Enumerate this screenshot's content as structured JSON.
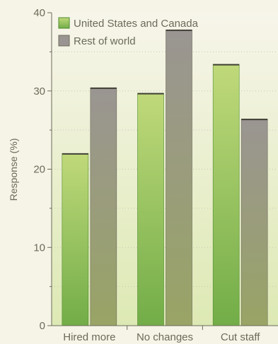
{
  "chart_data": {
    "type": "bar",
    "title": "",
    "xlabel": "",
    "ylabel": "Response (%)",
    "ylim": [
      0,
      40
    ],
    "yticks": [
      0,
      10,
      20,
      30,
      40
    ],
    "grid": true,
    "legend_position": "top-left",
    "categories": [
      "Hired more",
      "No changes",
      "Cut staff"
    ],
    "series": [
      {
        "name": "United States and Canada",
        "values": [
          22,
          29.7,
          33.4
        ],
        "color": "#8cc25a"
      },
      {
        "name": "Rest of world",
        "values": [
          30.4,
          37.8,
          26.4
        ],
        "color": "#9a9679"
      }
    ]
  },
  "colors": {
    "background_top": "#f7f5ea",
    "background_bottom": "#dde9b4",
    "axis": "#6b6b5a",
    "grid": "#c9c9b2"
  }
}
